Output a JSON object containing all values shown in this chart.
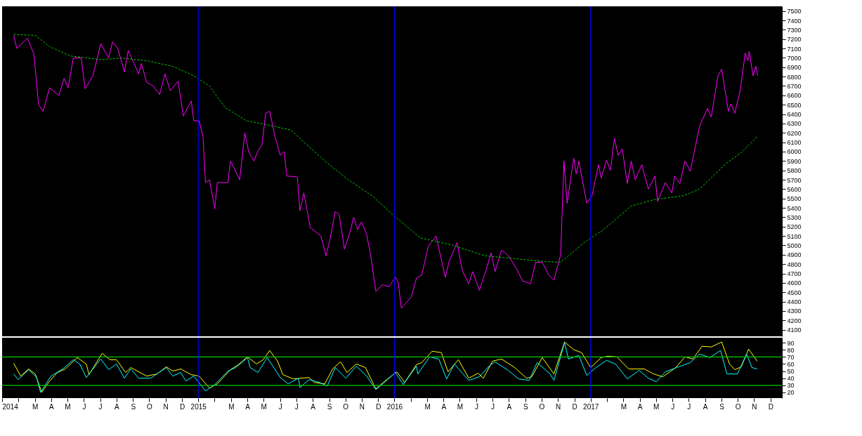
{
  "chart_data": [
    {
      "type": "line",
      "xlim": [
        2014.0,
        2017.975
      ],
      "ylim": [
        4030,
        7550
      ],
      "yticks": [
        4100,
        4200,
        4300,
        4400,
        4500,
        4600,
        4700,
        4800,
        4900,
        5000,
        5100,
        5200,
        5300,
        5400,
        5500,
        5600,
        5700,
        5800,
        5900,
        6000,
        6100,
        6200,
        6300,
        6400,
        6500,
        6600,
        6700,
        6800,
        6900,
        7000,
        7100,
        7200,
        7300,
        7400,
        7500
      ],
      "tick_labels": "y",
      "grid": false,
      "marker": "none",
      "ref_lines": [
        {
          "axis": "x",
          "value": 2015.0,
          "color": "#0000ff"
        },
        {
          "axis": "x",
          "value": 2016.0,
          "color": "#0000ff"
        },
        {
          "axis": "x",
          "value": 2017.0,
          "color": "#0000ff"
        }
      ],
      "series": [
        {
          "color": "#ff00ff",
          "line_style": "solid",
          "x": [
            2014.059,
            2014.075,
            2014.129,
            2014.162,
            2014.186,
            2014.209,
            2014.242,
            2014.289,
            2014.316,
            2014.336,
            2014.363,
            2014.403,
            2014.423,
            2014.463,
            2014.503,
            2014.543,
            2014.563,
            2014.59,
            2014.623,
            2014.643,
            2014.696,
            2014.71,
            2014.737,
            2014.77,
            2014.803,
            2014.83,
            2014.857,
            2014.897,
            2014.924,
            2014.964,
            2014.977,
            2015.004,
            2015.024,
            2015.037,
            2015.057,
            2015.084,
            2015.097,
            2015.151,
            2015.164,
            2015.211,
            2015.237,
            2015.257,
            2015.284,
            2015.304,
            2015.324,
            2015.344,
            2015.364,
            2015.391,
            2015.418,
            2015.438,
            2015.451,
            2015.505,
            2015.518,
            2015.538,
            2015.571,
            2015.625,
            2015.651,
            2015.671,
            2015.698,
            2015.718,
            2015.745,
            2015.772,
            2015.792,
            2015.812,
            2015.832,
            2015.858,
            2015.879,
            2015.905,
            2015.939,
            2015.972,
            2016.005,
            2016.019,
            2016.035,
            2016.086,
            2016.112,
            2016.139,
            2016.172,
            2016.212,
            2016.259,
            2016.279,
            2016.319,
            2016.346,
            2016.379,
            2016.399,
            2016.433,
            2016.466,
            2016.493,
            2016.513,
            2016.546,
            2016.58,
            2016.62,
            2016.653,
            2016.693,
            2016.72,
            2016.753,
            2016.787,
            2016.813,
            2016.847,
            2016.864,
            2016.88,
            2016.914,
            2016.927,
            2016.94,
            2016.98,
            2017.007,
            2017.04,
            2017.054,
            2017.081,
            2017.101,
            2017.121,
            2017.141,
            2017.161,
            2017.187,
            2017.207,
            2017.227,
            2017.261,
            2017.294,
            2017.328,
            2017.341,
            2017.381,
            2017.414,
            2017.428,
            2017.455,
            2017.481,
            2017.508,
            2017.555,
            2017.595,
            2017.615,
            2017.648,
            2017.668,
            2017.702,
            2017.715,
            2017.735,
            2017.762,
            2017.788,
            2017.802,
            2017.808,
            2017.828,
            2017.842,
            2017.852
          ],
          "values": [
            7240,
            7100,
            7210,
            7040,
            6500,
            6430,
            6680,
            6600,
            6780,
            6680,
            7000,
            7000,
            6670,
            6810,
            7150,
            7000,
            7170,
            7100,
            6850,
            7080,
            6830,
            6940,
            6740,
            6700,
            6610,
            6830,
            6650,
            6750,
            6380,
            6540,
            6330,
            6330,
            6160,
            5670,
            5700,
            5390,
            5670,
            5670,
            5900,
            5700,
            6200,
            6000,
            5900,
            6010,
            6070,
            6410,
            6430,
            6160,
            5960,
            6000,
            5740,
            5730,
            5370,
            5560,
            5190,
            5100,
            4890,
            5060,
            5360,
            5330,
            4960,
            5130,
            5300,
            5170,
            5250,
            5120,
            4890,
            4510,
            4580,
            4560,
            4660,
            4610,
            4330,
            4450,
            4650,
            4680,
            4990,
            5100,
            4660,
            4830,
            5030,
            4730,
            4590,
            4720,
            4520,
            4730,
            4920,
            4720,
            4950,
            4890,
            4760,
            4620,
            4590,
            4820,
            4820,
            4680,
            4630,
            4900,
            5900,
            5450,
            5930,
            5760,
            5900,
            5450,
            5530,
            5860,
            5720,
            5910,
            5800,
            6140,
            5960,
            6030,
            5660,
            5900,
            5700,
            5860,
            5600,
            5740,
            5470,
            5670,
            5560,
            5740,
            5660,
            5900,
            5790,
            6270,
            6460,
            6370,
            6800,
            6880,
            6430,
            6510,
            6410,
            6650,
            7050,
            6970,
            7070,
            6810,
            6910,
            6810
          ]
        },
        {
          "color": "#00cc00",
          "line_style": "dashed",
          "x": [
            2014.059,
            2014.169,
            2014.242,
            2014.349,
            2014.51,
            2014.603,
            2014.737,
            2014.87,
            2014.977,
            2015.057,
            2015.137,
            2015.244,
            2015.364,
            2015.471,
            2015.645,
            2015.765,
            2015.885,
            2016.012,
            2016.132,
            2016.299,
            2016.459,
            2016.606,
            2016.753,
            2016.847,
            2016.98,
            2017.061,
            2017.207,
            2017.328,
            2017.475,
            2017.555,
            2017.688,
            2017.768,
            2017.849
          ],
          "values": [
            7250,
            7240,
            7120,
            7020,
            6980,
            7000,
            6970,
            6910,
            6810,
            6700,
            6470,
            6330,
            6280,
            6230,
            5900,
            5700,
            5530,
            5290,
            5080,
            5000,
            4890,
            4860,
            4830,
            4820,
            5050,
            5160,
            5420,
            5490,
            5530,
            5600,
            5870,
            5990,
            6160
          ]
        }
      ]
    },
    {
      "type": "line",
      "xlim": [
        2014.0,
        2017.975
      ],
      "ylim": [
        12,
        97
      ],
      "yticks": [
        20,
        30,
        40,
        50,
        60,
        70,
        80,
        90
      ],
      "xticks": [
        {
          "value": 2014.0,
          "label": "2014"
        },
        {
          "value": 2014.083,
          "label": null
        },
        {
          "value": 2014.167,
          "label": "M"
        },
        {
          "value": 2014.25,
          "label": "A"
        },
        {
          "value": 2014.333,
          "label": "M"
        },
        {
          "value": 2014.417,
          "label": "J"
        },
        {
          "value": 2014.5,
          "label": "J"
        },
        {
          "value": 2014.583,
          "label": "A"
        },
        {
          "value": 2014.667,
          "label": "S"
        },
        {
          "value": 2014.75,
          "label": "O"
        },
        {
          "value": 2014.833,
          "label": "N"
        },
        {
          "value": 2014.917,
          "label": "D"
        },
        {
          "value": 2015.0,
          "label": "2015"
        },
        {
          "value": 2015.083,
          "label": null
        },
        {
          "value": 2015.167,
          "label": "M"
        },
        {
          "value": 2015.25,
          "label": "A"
        },
        {
          "value": 2015.333,
          "label": "M"
        },
        {
          "value": 2015.417,
          "label": "J"
        },
        {
          "value": 2015.5,
          "label": "J"
        },
        {
          "value": 2015.583,
          "label": "A"
        },
        {
          "value": 2015.667,
          "label": "S"
        },
        {
          "value": 2015.75,
          "label": "O"
        },
        {
          "value": 2015.833,
          "label": "N"
        },
        {
          "value": 2015.917,
          "label": "D"
        },
        {
          "value": 2016.0,
          "label": "2016"
        },
        {
          "value": 2016.083,
          "label": null
        },
        {
          "value": 2016.167,
          "label": "M"
        },
        {
          "value": 2016.25,
          "label": "A"
        },
        {
          "value": 2016.333,
          "label": "M"
        },
        {
          "value": 2016.417,
          "label": "J"
        },
        {
          "value": 2016.5,
          "label": "J"
        },
        {
          "value": 2016.583,
          "label": "A"
        },
        {
          "value": 2016.667,
          "label": "S"
        },
        {
          "value": 2016.75,
          "label": "O"
        },
        {
          "value": 2016.833,
          "label": "N"
        },
        {
          "value": 2016.917,
          "label": "D"
        },
        {
          "value": 2017.0,
          "label": "2017"
        },
        {
          "value": 2017.083,
          "label": null
        },
        {
          "value": 2017.167,
          "label": "M"
        },
        {
          "value": 2017.25,
          "label": "A"
        },
        {
          "value": 2017.333,
          "label": "M"
        },
        {
          "value": 2017.417,
          "label": "J"
        },
        {
          "value": 2017.5,
          "label": "J"
        },
        {
          "value": 2017.583,
          "label": "A"
        },
        {
          "value": 2017.667,
          "label": "S"
        },
        {
          "value": 2017.75,
          "label": "O"
        },
        {
          "value": 2017.833,
          "label": "N"
        },
        {
          "value": 2017.917,
          "label": "D"
        }
      ],
      "grid": false,
      "marker": "none",
      "ref_lines": [
        {
          "axis": "y",
          "value": 70,
          "color": "#00cc00"
        },
        {
          "axis": "y",
          "value": 30,
          "color": "#00cc00"
        },
        {
          "axis": "x",
          "value": 2015.0,
          "color": "#0000ff"
        },
        {
          "axis": "x",
          "value": 2016.0,
          "color": "#0000ff"
        },
        {
          "axis": "x",
          "value": 2017.0,
          "color": "#0000ff"
        }
      ],
      "series": [
        {
          "color": "#ffff00",
          "line_style": "solid",
          "x": [
            2014.059,
            2014.095,
            2014.135,
            2014.169,
            2014.202,
            2014.242,
            2014.282,
            2014.322,
            2014.383,
            2014.429,
            2014.443,
            2014.51,
            2014.55,
            2014.583,
            2014.63,
            2014.656,
            2014.737,
            2014.79,
            2014.837,
            2014.87,
            2014.91,
            2014.964,
            2015.004,
            2015.057,
            2015.097,
            2015.164,
            2015.204,
            2015.251,
            2015.297,
            2015.331,
            2015.364,
            2015.404,
            2015.431,
            2015.484,
            2015.565,
            2015.591,
            2015.645,
            2015.685,
            2015.725,
            2015.758,
            2015.805,
            2015.852,
            2015.905,
            2015.952,
            2016.012,
            2016.052,
            2016.112,
            2016.139,
            2016.192,
            2016.239,
            2016.273,
            2016.326,
            2016.379,
            2016.426,
            2016.453,
            2016.5,
            2016.546,
            2016.613,
            2016.673,
            2016.7,
            2016.753,
            2016.813,
            2016.867,
            2016.914,
            2016.954,
            2017.0,
            2017.054,
            2017.087,
            2017.134,
            2017.194,
            2017.274,
            2017.321,
            2017.368,
            2017.434,
            2017.481,
            2017.521,
            2017.568,
            2017.615,
            2017.668,
            2017.708,
            2017.735,
            2017.768,
            2017.805,
            2017.849
          ],
          "values": [
            61,
            43,
            53,
            46,
            20,
            36,
            48,
            53,
            69,
            60,
            45,
            75,
            66,
            66,
            48,
            55,
            43,
            46,
            56,
            50,
            53,
            45,
            43,
            26,
            32,
            52,
            59,
            70,
            60,
            66,
            79,
            64,
            45,
            39,
            41,
            34,
            32,
            53,
            63,
            48,
            60,
            55,
            25,
            36,
            49,
            34,
            59,
            62,
            78,
            76,
            49,
            66,
            40,
            47,
            40,
            64,
            67,
            55,
            40,
            42,
            69,
            46,
            91,
            80,
            76,
            55,
            69,
            71,
            70,
            53,
            53,
            46,
            42,
            55,
            70,
            67,
            85,
            84,
            91,
            60,
            52,
            56,
            81,
            64
          ]
        },
        {
          "color": "#00ffff",
          "line_style": "solid",
          "x": [
            2014.059,
            2014.082,
            2014.135,
            2014.176,
            2014.196,
            2014.249,
            2014.309,
            2014.363,
            2014.396,
            2014.429,
            2014.503,
            2014.543,
            2014.583,
            2014.623,
            2014.656,
            2014.696,
            2014.757,
            2014.837,
            2014.87,
            2014.91,
            2014.937,
            2014.977,
            2015.037,
            2015.084,
            2015.151,
            2015.191,
            2015.251,
            2015.264,
            2015.304,
            2015.351,
            2015.418,
            2015.458,
            2015.511,
            2015.518,
            2015.565,
            2015.618,
            2015.658,
            2015.698,
            2015.752,
            2015.805,
            2015.858,
            2015.905,
            2015.965,
            2016.005,
            2016.045,
            2016.112,
            2016.119,
            2016.179,
            2016.226,
            2016.266,
            2016.306,
            2016.346,
            2016.379,
            2016.433,
            2016.486,
            2016.513,
            2016.58,
            2016.633,
            2016.687,
            2016.727,
            2016.793,
            2016.813,
            2016.867,
            2016.887,
            2016.94,
            2016.98,
            2017.027,
            2017.081,
            2017.127,
            2017.187,
            2017.247,
            2017.294,
            2017.334,
            2017.381,
            2017.448,
            2017.508,
            2017.555,
            2017.608,
            2017.662,
            2017.695,
            2017.748,
            2017.795,
            2017.822,
            2017.849
          ],
          "values": [
            46,
            38,
            52,
            41,
            20,
            43,
            53,
            66,
            60,
            41,
            67,
            52,
            60,
            40,
            53,
            40,
            40,
            55,
            43,
            48,
            36,
            43,
            22,
            31,
            50,
            55,
            69,
            55,
            48,
            69,
            41,
            32,
            40,
            27,
            38,
            34,
            29,
            55,
            40,
            57,
            43,
            24,
            38,
            48,
            31,
            57,
            46,
            70,
            67,
            39,
            60,
            47,
            37,
            42,
            58,
            63,
            51,
            39,
            37,
            62,
            46,
            37,
            90,
            67,
            72,
            44,
            55,
            65,
            60,
            39,
            51,
            40,
            35,
            49,
            56,
            62,
            74,
            69,
            79,
            46,
            46,
            74,
            55,
            53
          ]
        }
      ]
    }
  ]
}
